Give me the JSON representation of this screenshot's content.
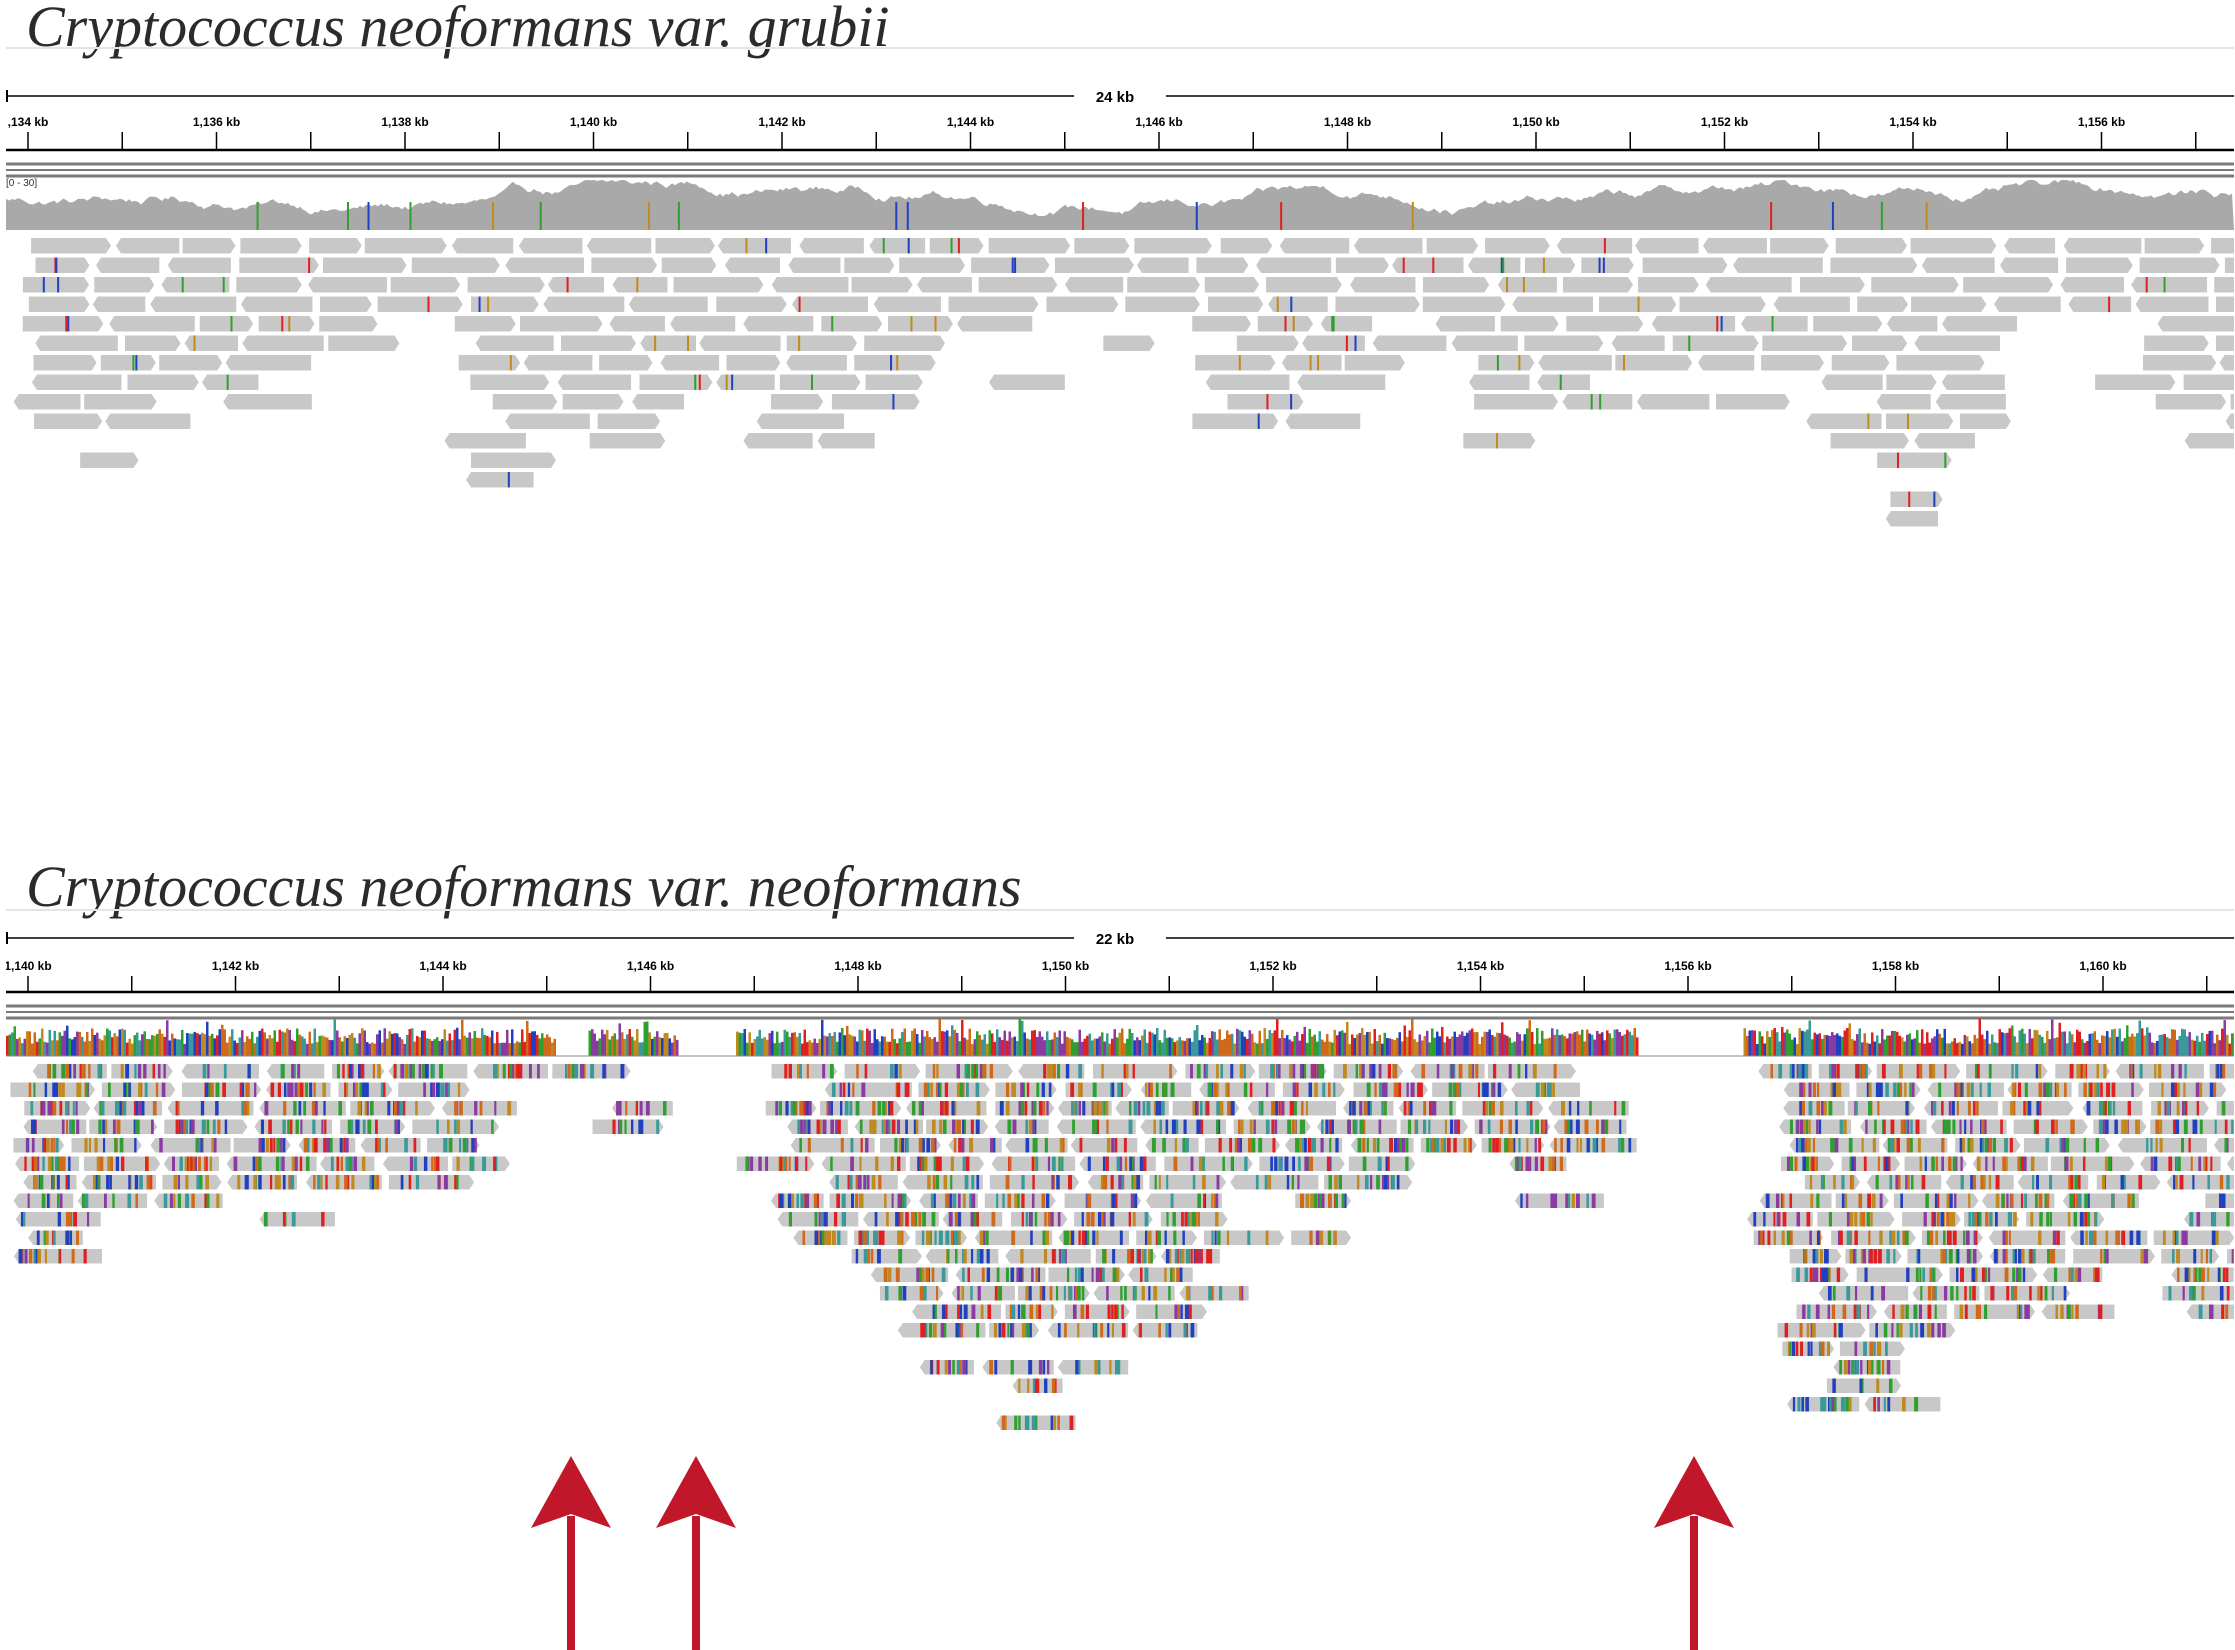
{
  "panels": [
    {
      "id": "grubii",
      "title": "Cryptococcus neoformans var. grubii",
      "span_label": "24 kb",
      "ticks": [
        ",134 kb",
        "1,136 kb",
        "1,138 kb",
        "1,140 kb",
        "1,142 kb",
        "1,144 kb",
        "1,146 kb",
        "1,148 kb",
        "1,150 kb",
        "1,152 kb",
        "1,154 kb",
        "1,156 kb"
      ],
      "coverage_range_label": "[0 - 30]",
      "read_style": "grey",
      "mismatch_colors": [
        "#e02020",
        "#2fa02f",
        "#2040c0",
        "#c08a20"
      ]
    },
    {
      "id": "neoformans",
      "title": "Cryptococcus neoformans var. neoformans",
      "span_label": "22 kb",
      "ticks": [
        "1,140 kb",
        "1,142 kb",
        "1,144 kb",
        "1,146 kb",
        "1,148 kb",
        "1,150 kb",
        "1,152 kb",
        "1,154 kb",
        "1,156 kb",
        "1,158 kb",
        "1,160 kb"
      ],
      "read_style": "colored",
      "mismatch_colors": [
        "#e02020",
        "#2fa02f",
        "#2040c0",
        "#c08a20",
        "#8a3aa0",
        "#3a9a9a",
        "#d06a1a"
      ],
      "gap_arrows": 3
    }
  ],
  "colors": {
    "read_grey": "#c8c8c8",
    "coverage_grey": "#a9a9a9",
    "arrow": "#c0182a",
    "ruler": "#000000"
  }
}
